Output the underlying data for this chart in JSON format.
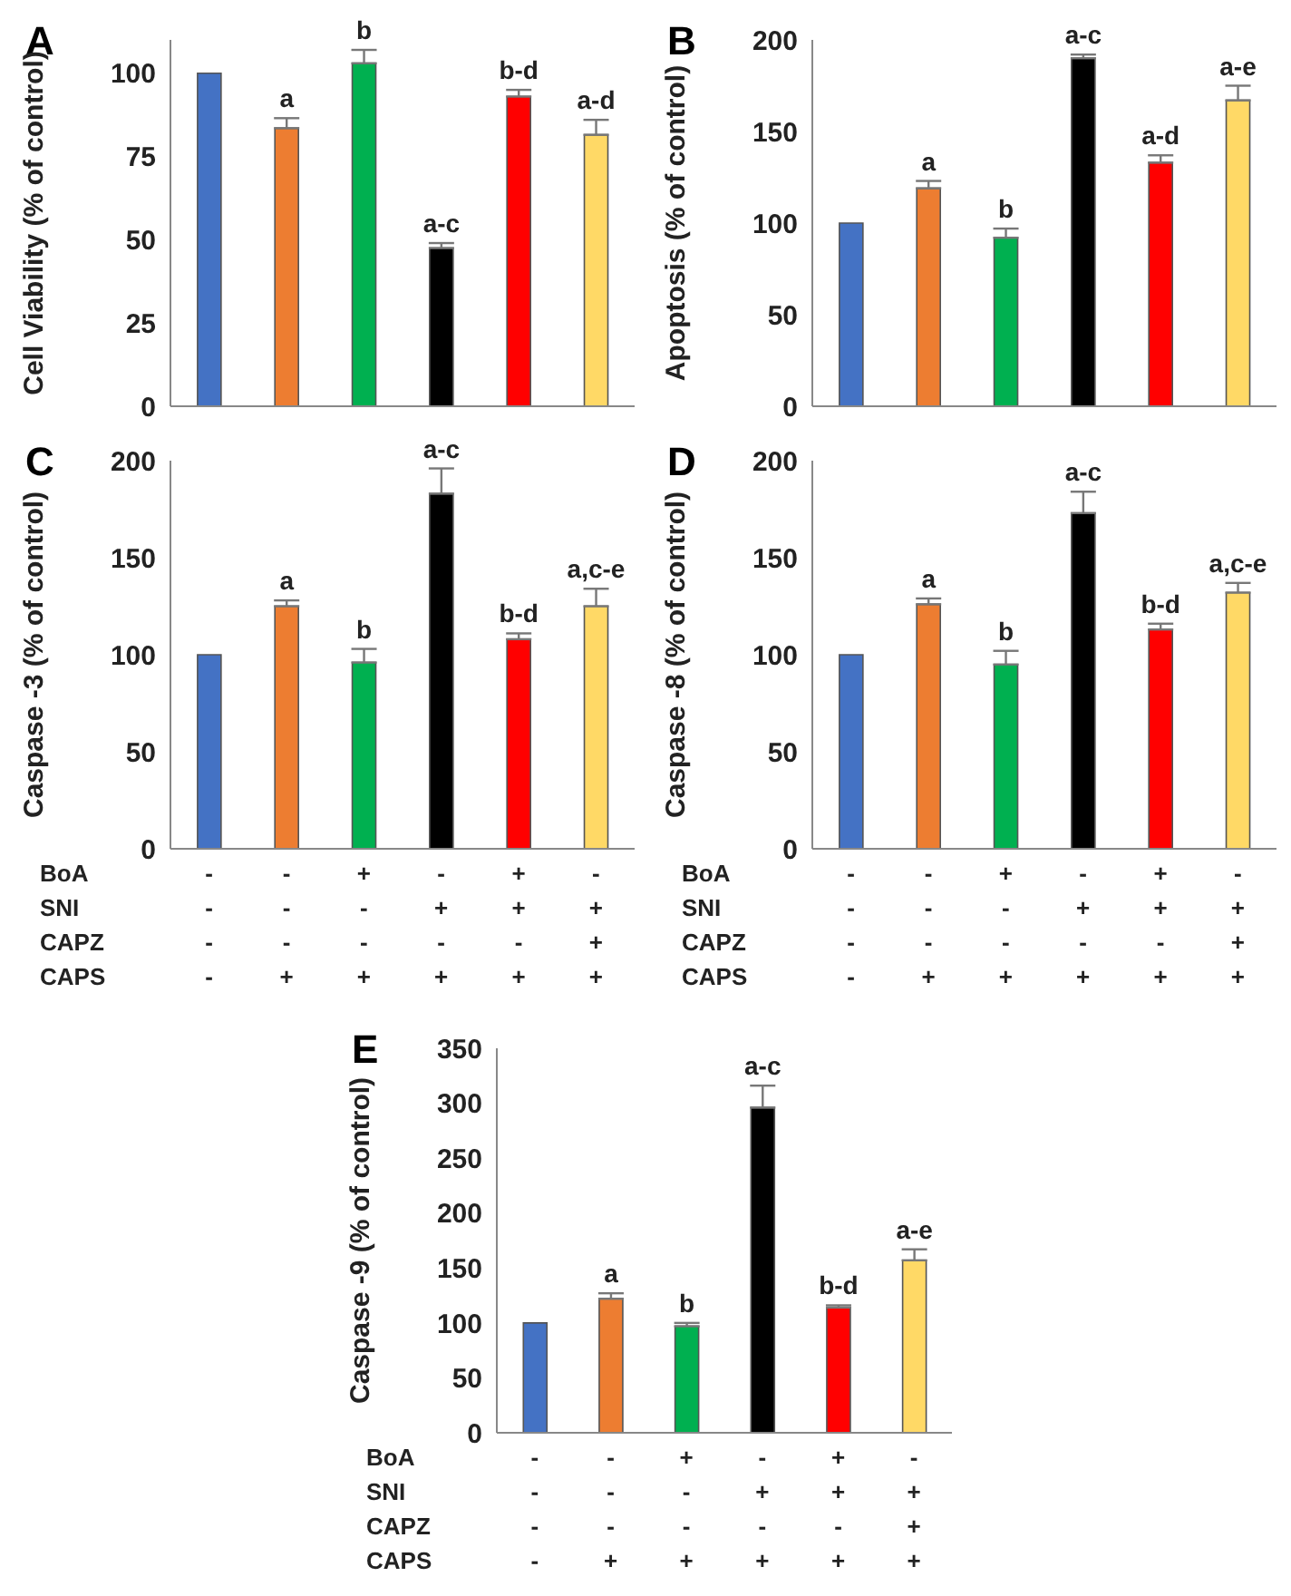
{
  "chart_data": [
    {
      "type": "bar",
      "title": "A",
      "ylabel": "Cell Viability  (% of control)",
      "categories": [
        null,
        null,
        null,
        null,
        null,
        null
      ],
      "values": [
        100,
        83.5,
        103,
        47.5,
        93,
        81.5
      ],
      "colors": [
        "#4472c4",
        "#ed7d31",
        "#00b050",
        "#000000",
        "#ff0000",
        "#ffd966"
      ],
      "errors": [
        null,
        [
          83.5,
          86.5
        ],
        [
          103,
          107
        ],
        [
          47.5,
          49
        ],
        [
          93,
          95
        ],
        [
          81.5,
          86
        ]
      ],
      "value_labels": [
        null,
        "a",
        "b",
        "a-c",
        "b-d",
        "a-d"
      ],
      "ylim": [
        0,
        110
      ],
      "yticks": [
        0,
        25,
        50,
        75,
        100
      ],
      "tick_labels": "y"
    },
    {
      "type": "bar",
      "title": "B",
      "ylabel": "Apoptosis  (% of control)",
      "categories": [
        null,
        null,
        null,
        null,
        null,
        null
      ],
      "values": [
        100,
        119,
        92,
        190,
        133,
        167
      ],
      "colors": [
        "#4472c4",
        "#ed7d31",
        "#00b050",
        "#000000",
        "#ff0000",
        "#ffd966"
      ],
      "errors": [
        null,
        [
          119,
          123
        ],
        [
          92,
          97
        ],
        [
          190,
          192
        ],
        [
          133,
          137
        ],
        [
          167,
          175
        ]
      ],
      "value_labels": [
        null,
        "a",
        "b",
        "a-c",
        "a-d",
        "a-e"
      ],
      "ylim": [
        0,
        200
      ],
      "yticks": [
        0,
        50,
        100,
        150,
        200
      ],
      "tick_labels": "y"
    },
    {
      "type": "bar",
      "title": "C",
      "ylabel": "Caspase -3  (% of control)",
      "categories": [
        "-\n-\n-\n-",
        "-\n-\n-\n+",
        "+\n-\n-\n+",
        "-\n+\n-\n+",
        "+\n+\n-\n+",
        "-\n+\n+\n+"
      ],
      "values": [
        100,
        125,
        96,
        183,
        108,
        125
      ],
      "colors": [
        "#4472c4",
        "#ed7d31",
        "#00b050",
        "#000000",
        "#ff0000",
        "#ffd966"
      ],
      "errors": [
        null,
        [
          125,
          128
        ],
        [
          96,
          103
        ],
        [
          183,
          196
        ],
        [
          108,
          111
        ],
        [
          125,
          134
        ]
      ],
      "value_labels": [
        null,
        "a",
        "b",
        "a-c",
        "b-d",
        "a,c-e"
      ],
      "ylim": [
        0,
        200
      ],
      "yticks": [
        0,
        50,
        100,
        150,
        200
      ],
      "annotations": [
        "BoA",
        "SNI",
        "CAPZ",
        "CAPS"
      ]
    },
    {
      "type": "bar",
      "title": "D",
      "ylabel": "Caspase -8  (% of control)",
      "categories": [
        "-\n-\n-\n-",
        "-\n-\n-\n+",
        "+\n-\n-\n+",
        "-\n+\n-\n+",
        "+\n+\n-\n+",
        "-\n+\n+\n+"
      ],
      "values": [
        100,
        126,
        95,
        173,
        113,
        132
      ],
      "colors": [
        "#4472c4",
        "#ed7d31",
        "#00b050",
        "#000000",
        "#ff0000",
        "#ffd966"
      ],
      "errors": [
        null,
        [
          126,
          129
        ],
        [
          95,
          102
        ],
        [
          173,
          184
        ],
        [
          113,
          116
        ],
        [
          132,
          137
        ]
      ],
      "value_labels": [
        null,
        "a",
        "b",
        "a-c",
        "b-d",
        "a,c-e"
      ],
      "ylim": [
        0,
        200
      ],
      "yticks": [
        0,
        50,
        100,
        150,
        200
      ],
      "annotations": [
        "BoA",
        "SNI",
        "CAPZ",
        "CAPS"
      ]
    },
    {
      "type": "bar",
      "title": "E",
      "ylabel": "Caspase -9  (% of control)",
      "categories": [
        "-\n-\n-\n-",
        "-\n-\n-\n+",
        "+\n-\n-\n+",
        "-\n+\n-\n+",
        "+\n+\n-\n+",
        "-\n+\n+\n+"
      ],
      "values": [
        100,
        122,
        97,
        296,
        114,
        157
      ],
      "colors": [
        "#4472c4",
        "#ed7d31",
        "#00b050",
        "#000000",
        "#ff0000",
        "#ffd966"
      ],
      "errors": [
        null,
        [
          122,
          127
        ],
        [
          97,
          100
        ],
        [
          296,
          316
        ],
        [
          114,
          116
        ],
        [
          157,
          167
        ]
      ],
      "value_labels": [
        null,
        "a",
        "b",
        "a-c",
        "b-d",
        "a-e"
      ],
      "ylim": [
        0,
        350
      ],
      "yticks": [
        0,
        50,
        100,
        150,
        200,
        250,
        300,
        350
      ],
      "annotations": [
        "BoA",
        "SNI",
        "CAPZ",
        "CAPS"
      ]
    }
  ]
}
